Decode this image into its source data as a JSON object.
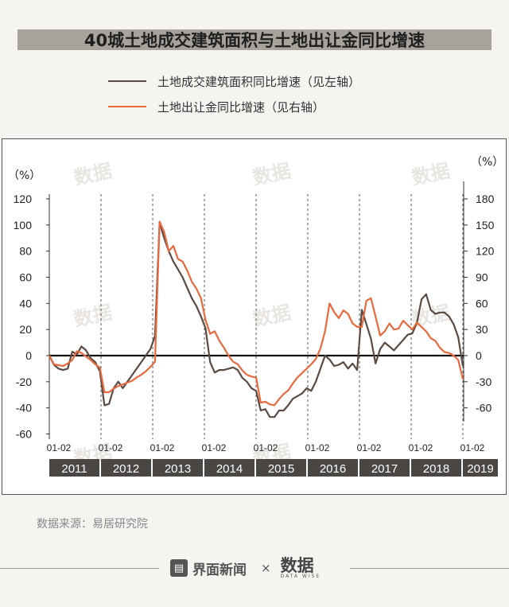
{
  "title": "40城土地成交建筑面积与土地出让金同比增速",
  "legend": [
    {
      "label": "土地成交建筑面积同比增速（见左轴）",
      "color": "#5a4a42"
    },
    {
      "label": "土地出让金同比增速（见右轴）",
      "color": "#e8693d"
    }
  ],
  "source": "数据来源：易居研究院",
  "footer": {
    "brand": "界面新闻",
    "times": "×",
    "logo": "数据",
    "logo_sub": "DATA WISE"
  },
  "watermark": "数据",
  "chart_data": {
    "type": "line",
    "left_unit": "（%）",
    "right_unit": "（%）",
    "left_ylim": [
      -60,
      120
    ],
    "right_ylim": [
      -60,
      180
    ],
    "left_ticks": [
      120,
      100,
      80,
      60,
      40,
      20,
      0,
      -20,
      -40,
      -60
    ],
    "right_ticks": [
      180,
      150,
      120,
      90,
      60,
      30,
      0,
      -30,
      -60
    ],
    "x_tick_label": "01-02",
    "x_tick_count": 9,
    "years": [
      "2011",
      "2012",
      "2013",
      "2014",
      "2015",
      "2016",
      "2017",
      "2018",
      "2019"
    ],
    "start_year": 2011,
    "series": [
      {
        "name": "土地成交建筑面积同比增速（见左轴）",
        "axis": "left",
        "color": "#5a4a42",
        "values": [
          0,
          -7,
          -10,
          -11,
          -10,
          3,
          1,
          7,
          4,
          -2,
          -5,
          -12,
          -38,
          -37,
          -25,
          -20,
          -25,
          -20,
          -15,
          -10,
          -5,
          0,
          5,
          15,
          102,
          90,
          80,
          72,
          66,
          60,
          52,
          44,
          38,
          30,
          21,
          -5,
          -13,
          -11,
          -11,
          -10,
          -9,
          -11,
          -17,
          -20,
          -25,
          -27,
          -42,
          -41,
          -47,
          -47,
          -42,
          -42,
          -38,
          -33,
          -31,
          -29,
          -25,
          -27,
          -20,
          -10,
          0,
          -3,
          -8,
          -7,
          -5,
          -10,
          -6,
          -11,
          35,
          24,
          13,
          -6,
          5,
          10,
          7,
          4,
          8,
          12,
          16,
          17,
          25,
          43,
          47,
          35,
          32,
          33,
          33,
          30,
          24,
          14,
          -8
        ]
      },
      {
        "name": "土地出让金同比增速（见右轴）",
        "axis": "right",
        "color": "#e8693d",
        "values": [
          0,
          -10,
          -11,
          -12,
          -9,
          -5,
          5,
          3,
          -1,
          -5,
          -10,
          -14,
          -42,
          -42,
          -38,
          -35,
          -33,
          -31,
          -29,
          -25,
          -22,
          -18,
          -13,
          -7,
          154,
          142,
          120,
          126,
          111,
          108,
          98,
          85,
          77,
          66,
          41,
          25,
          28,
          17,
          9,
          0,
          -7,
          -10,
          -17,
          -22,
          -24,
          -25,
          -54,
          -53,
          -56,
          -57,
          -50,
          -44,
          -40,
          -32,
          -25,
          -20,
          -15,
          -10,
          -4,
          8,
          28,
          60,
          50,
          43,
          52,
          48,
          37,
          33,
          33,
          63,
          66,
          45,
          23,
          28,
          37,
          30,
          31,
          40,
          35,
          30,
          38,
          33,
          28,
          20,
          17,
          9,
          4,
          3,
          0,
          -5,
          -27
        ]
      }
    ]
  }
}
